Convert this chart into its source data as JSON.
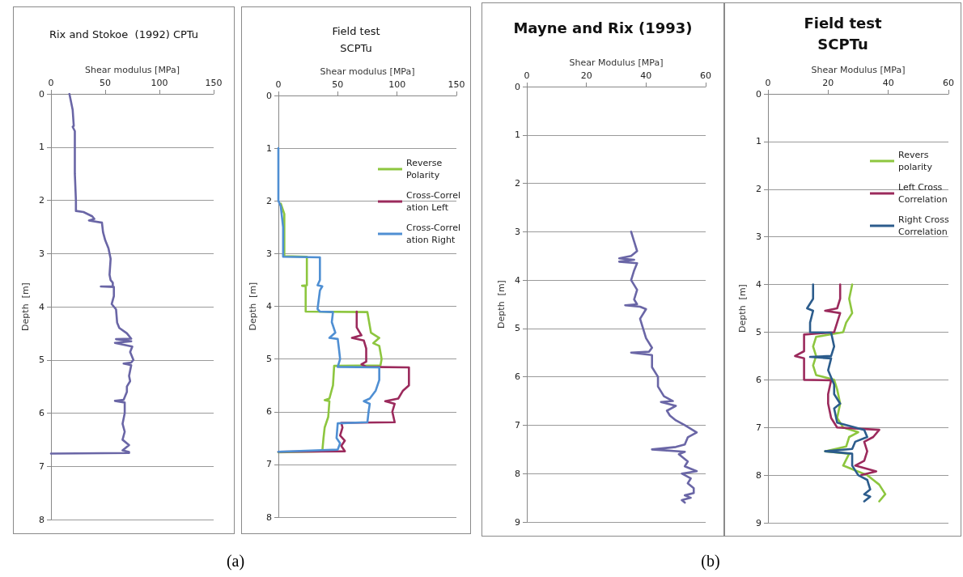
{
  "chart_data": [
    {
      "type": "line",
      "title": "Rix and Stokoe  (1992) CPTu",
      "xlabel": "Shear modulus [MPa]",
      "ylabel": "Depth  [m]",
      "annotations": [
        "(a)"
      ],
      "xlim": [
        0,
        150
      ],
      "xticks": [
        0,
        50,
        100,
        150
      ],
      "ylim": [
        8,
        0
      ],
      "yticks": [
        0,
        1,
        2,
        3,
        4,
        5,
        6,
        7,
        8
      ],
      "grid": "y",
      "legend": false,
      "series": [
        {
          "color": "#6a66a6",
          "x": [
            17,
            20,
            21,
            20,
            22,
            22,
            22,
            23,
            23,
            30,
            38,
            40,
            35,
            47,
            48,
            50,
            53,
            55,
            54,
            55,
            57,
            57,
            46,
            58,
            58,
            56,
            60,
            61,
            63,
            70,
            74,
            60,
            74,
            59,
            75,
            73,
            76,
            74,
            67,
            74,
            72,
            73,
            70,
            70,
            67,
            59,
            68,
            68,
            66,
            68,
            66,
            72,
            66,
            72,
            72,
            0
          ],
          "values": [
            0,
            0.3,
            0.6,
            0.62,
            0.7,
            1.0,
            1.5,
            2.0,
            2.2,
            2.22,
            2.3,
            2.35,
            2.38,
            2.42,
            2.6,
            2.75,
            2.9,
            3.1,
            3.4,
            3.5,
            3.55,
            3.62,
            3.62,
            3.63,
            3.8,
            3.95,
            4.05,
            4.3,
            4.4,
            4.5,
            4.6,
            4.61,
            4.65,
            4.68,
            4.75,
            4.85,
            5.0,
            5.05,
            5.07,
            5.1,
            5.3,
            5.4,
            5.5,
            5.6,
            5.75,
            5.77,
            5.8,
            6.0,
            6.2,
            6.35,
            6.5,
            6.6,
            6.7,
            6.73,
            6.75,
            6.76
          ]
        }
      ]
    },
    {
      "type": "line",
      "title": "Field test",
      "subtitle": "SCPTu",
      "xlabel": "Shear modulus [MPa]",
      "ylabel": "Depth  [m]",
      "xlim": [
        0,
        150
      ],
      "xticks": [
        0,
        50,
        100,
        150
      ],
      "ylim": [
        8,
        0
      ],
      "yticks": [
        0,
        1,
        2,
        3,
        4,
        5,
        6,
        7,
        8
      ],
      "grid": "y",
      "legend": "right",
      "series": [
        {
          "name": "Reverse Polarity",
          "color": "#8dc63f",
          "x": [
            2,
            5,
            5,
            24,
            24,
            20,
            23,
            23,
            75,
            78,
            85,
            80,
            85,
            87,
            86,
            47,
            46,
            43,
            39,
            43,
            42,
            39,
            38,
            37,
            0
          ],
          "values": [
            2.05,
            2.25,
            3.05,
            3.06,
            3.6,
            3.61,
            3.62,
            4.1,
            4.11,
            4.5,
            4.6,
            4.7,
            4.75,
            5.0,
            5.12,
            5.13,
            5.5,
            5.75,
            5.78,
            5.8,
            6.1,
            6.3,
            6.5,
            6.75,
            6.77
          ]
        },
        {
          "name": "Cross-Correlation Left",
          "color": "#9b2a5c",
          "x": [
            66,
            66,
            70,
            62,
            72,
            74,
            74,
            70,
            74,
            110,
            110,
            105,
            101,
            90,
            98,
            96,
            98,
            53,
            54,
            52,
            56,
            53,
            56,
            0
          ],
          "values": [
            4.1,
            4.4,
            4.55,
            4.6,
            4.65,
            4.8,
            5.05,
            5.1,
            5.15,
            5.16,
            5.5,
            5.6,
            5.75,
            5.8,
            5.85,
            6.0,
            6.2,
            6.21,
            6.3,
            6.45,
            6.55,
            6.65,
            6.75,
            6.76
          ]
        },
        {
          "name": "Cross-Correlation Right",
          "color": "#4f8fd3",
          "x": [
            0,
            0,
            2,
            3,
            4,
            4,
            35,
            35,
            33,
            37,
            35,
            33,
            35,
            46,
            45,
            48,
            43,
            50,
            51,
            52,
            50,
            85,
            85,
            82,
            77,
            72,
            77,
            76,
            75,
            50,
            49,
            52,
            50,
            0
          ],
          "values": [
            1.0,
            2.0,
            2.1,
            2.3,
            2.5,
            3.06,
            3.07,
            3.5,
            3.6,
            3.62,
            3.7,
            4.05,
            4.1,
            4.11,
            4.3,
            4.5,
            4.6,
            4.62,
            4.8,
            5.0,
            5.15,
            5.16,
            5.4,
            5.6,
            5.75,
            5.8,
            5.85,
            6.0,
            6.2,
            6.22,
            6.5,
            6.6,
            6.72,
            6.76
          ]
        }
      ]
    },
    {
      "type": "line",
      "title": "Mayne and Rix (1993)",
      "xlabel": "Shear Modulus [MPa]",
      "ylabel": "Depth  [m]",
      "annotations": [
        "(b)"
      ],
      "xlim": [
        0,
        60
      ],
      "xticks": [
        0,
        20,
        40,
        60
      ],
      "ylim": [
        9,
        0
      ],
      "yticks": [
        0,
        1,
        2,
        3,
        4,
        5,
        6,
        7,
        8,
        9
      ],
      "grid": "y",
      "legend": false,
      "series": [
        {
          "color": "#6a66a6",
          "x": [
            35,
            36,
            37,
            35,
            31,
            36,
            31,
            37,
            36,
            35,
            37,
            36,
            37,
            33,
            38,
            40,
            38,
            39,
            40,
            42,
            41,
            35,
            42,
            42,
            44,
            44,
            46,
            49,
            45,
            50,
            47,
            48,
            50,
            53,
            57,
            54,
            53,
            50,
            42,
            53,
            51,
            54,
            53,
            57,
            52,
            55,
            54,
            56,
            56,
            53,
            55,
            52,
            53
          ],
          "values": [
            3.0,
            3.2,
            3.4,
            3.5,
            3.55,
            3.58,
            3.62,
            3.65,
            3.8,
            4.0,
            4.2,
            4.4,
            4.5,
            4.52,
            4.55,
            4.6,
            4.8,
            5.0,
            5.2,
            5.4,
            5.48,
            5.5,
            5.55,
            5.8,
            6.0,
            6.2,
            6.4,
            6.5,
            6.52,
            6.6,
            6.7,
            6.8,
            6.9,
            7.0,
            7.15,
            7.25,
            7.4,
            7.45,
            7.5,
            7.55,
            7.6,
            7.75,
            7.85,
            7.95,
            8.0,
            8.1,
            8.2,
            8.3,
            8.4,
            8.45,
            8.5,
            8.55,
            8.6
          ]
        }
      ]
    },
    {
      "type": "line",
      "title": "Field test",
      "subtitle": "SCPTu",
      "xlabel": "Shear Modulus [MPa]",
      "ylabel": "Depth  [m]",
      "xlim": [
        0,
        60
      ],
      "xticks": [
        0,
        20,
        40,
        60
      ],
      "ylim": [
        9,
        0
      ],
      "yticks": [
        0,
        1,
        2,
        3,
        4,
        5,
        6,
        7,
        8,
        9
      ],
      "grid": "y",
      "legend": "right",
      "series": [
        {
          "name": "Revers polarity",
          "color": "#8dc63f",
          "x": [
            28,
            27,
            28,
            26,
            25,
            16,
            15,
            16,
            15,
            16,
            22,
            23,
            24,
            23,
            25,
            30,
            27,
            26,
            19,
            27,
            25,
            29,
            33,
            35,
            37,
            39,
            37
          ],
          "values": [
            4.0,
            4.3,
            4.6,
            4.8,
            5.0,
            5.1,
            5.3,
            5.5,
            5.7,
            5.9,
            6.0,
            6.2,
            6.5,
            6.8,
            7.0,
            7.1,
            7.2,
            7.4,
            7.5,
            7.55,
            7.8,
            7.9,
            8.0,
            8.1,
            8.2,
            8.4,
            8.55
          ]
        },
        {
          "name": "Left Cross Correlation",
          "color": "#9b2a5c",
          "x": [
            24,
            24,
            23,
            19,
            24,
            23,
            22,
            12,
            12,
            9,
            12,
            12,
            12,
            21,
            20,
            20,
            21,
            23,
            37,
            35,
            32,
            33,
            32,
            29,
            36,
            31
          ],
          "values": [
            4.0,
            4.3,
            4.5,
            4.55,
            4.6,
            4.8,
            5.0,
            5.05,
            5.4,
            5.5,
            5.55,
            5.8,
            6.0,
            6.01,
            6.3,
            6.5,
            6.8,
            7.0,
            7.05,
            7.2,
            7.3,
            7.5,
            7.7,
            7.8,
            7.92,
            8.0
          ]
        },
        {
          "name": "Right Cross Correlation",
          "color": "#2c5c8c",
          "x": [
            15,
            15,
            13,
            15,
            14,
            14,
            21,
            22,
            21,
            14,
            21,
            20,
            22,
            22,
            24,
            22,
            23,
            32,
            33,
            29,
            28,
            19,
            28,
            28,
            30,
            33,
            34,
            32,
            34,
            32
          ],
          "values": [
            4.0,
            4.3,
            4.5,
            4.55,
            4.8,
            5.0,
            5.01,
            5.3,
            5.5,
            5.52,
            5.55,
            5.8,
            6.1,
            6.3,
            6.5,
            6.6,
            6.9,
            7.05,
            7.2,
            7.3,
            7.45,
            7.5,
            7.55,
            7.8,
            8.0,
            8.1,
            8.3,
            8.4,
            8.45,
            8.55
          ]
        }
      ]
    }
  ]
}
